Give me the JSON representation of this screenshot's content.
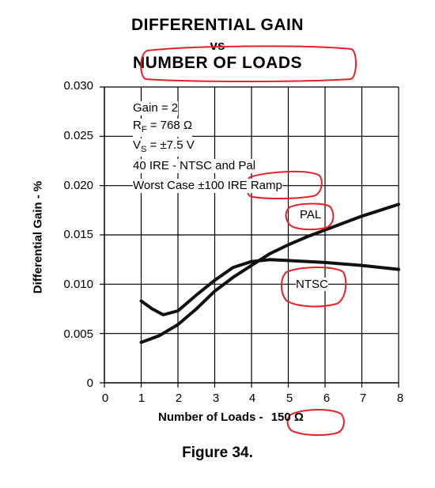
{
  "chart_data": {
    "type": "line",
    "title": "DIFFERENTIAL GAIN",
    "title_vs": "vs",
    "title_line2": "NUMBER OF LOADS",
    "xlabel": "Number of Loads -",
    "xlabel_unit": "150 Ω",
    "ylabel": "Differential Gain - %",
    "xlim": [
      0,
      8
    ],
    "ylim": [
      0,
      0.03
    ],
    "x_ticks": [
      "0",
      "1",
      "2",
      "3",
      "4",
      "5",
      "6",
      "7",
      "8"
    ],
    "y_ticks": [
      "0.030",
      "0.025",
      "0.020",
      "0.015",
      "0.010",
      "0.005",
      "0"
    ],
    "grid": true,
    "conditions": {
      "gain": "Gain = 2",
      "rf_prefix": "R",
      "rf_sub": "F",
      "rf_value": " = 768 Ω",
      "vs_prefix": "V",
      "vs_sub": "S",
      "vs_value": " = ±7.5 V",
      "ire": "40 IRE - NTSC and Pal",
      "worst_case": "Worst Case ±100 IRE Ramp"
    },
    "series": [
      {
        "name": "PAL",
        "x": [
          1,
          1.5,
          2,
          2.5,
          3,
          3.5,
          4,
          4.5,
          5,
          5.5,
          6,
          6.5,
          7,
          7.5,
          8
        ],
        "y": [
          0.0041,
          0.0048,
          0.0059,
          0.0075,
          0.0093,
          0.0107,
          0.0119,
          0.0131,
          0.014,
          0.0148,
          0.0155,
          0.0162,
          0.0169,
          0.0175,
          0.0181
        ]
      },
      {
        "name": "NTSC",
        "x": [
          1,
          1.3,
          1.6,
          2,
          2.5,
          3,
          3.5,
          4,
          4.5,
          5,
          6,
          7,
          8
        ],
        "y": [
          0.0083,
          0.0075,
          0.0069,
          0.0073,
          0.0089,
          0.0104,
          0.0117,
          0.0123,
          0.0125,
          0.0124,
          0.0122,
          0.0119,
          0.0115
        ]
      }
    ]
  },
  "figure_caption": "Figure 34."
}
